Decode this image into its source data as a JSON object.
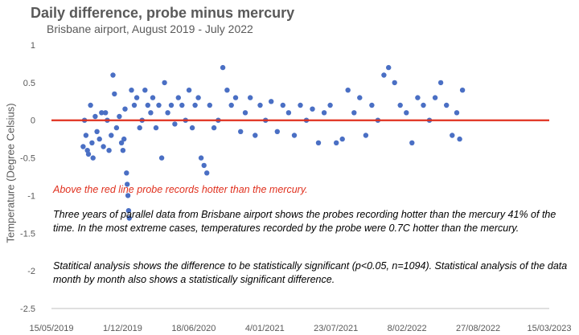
{
  "chart_data": {
    "type": "scatter",
    "title": "Daily difference, probe minus mercury",
    "subtitle": "Brisbane airport, August  2019 - July 2022",
    "xlabel": "",
    "ylabel": "Temperature (Degree Celsius)",
    "xlim": [
      "2019-05-15",
      "2023-03-15"
    ],
    "ylim": [
      -2.5,
      1.0
    ],
    "x_ticks": [
      "15/05/2019",
      "1/12/2019",
      "18/06/2020",
      "4/01/2021",
      "23/07/2021",
      "8/02/2022",
      "27/08/2022",
      "15/03/2023"
    ],
    "y_ticks": [
      "1",
      "0.5",
      "0",
      "-0.5",
      "-1",
      "-1.5",
      "-2",
      "-2.5"
    ],
    "reference_line": {
      "y": 0,
      "color": "#e0301e"
    },
    "marker_color": "#4a6fc4",
    "grid": false,
    "series": [
      {
        "points": [
          [
            "2019-08-12",
            -0.35
          ],
          [
            "2019-08-16",
            0.0
          ],
          [
            "2019-08-20",
            -0.2
          ],
          [
            "2019-08-24",
            -0.4
          ],
          [
            "2019-08-27",
            -0.45
          ],
          [
            "2019-09-02",
            0.2
          ],
          [
            "2019-09-06",
            -0.3
          ],
          [
            "2019-09-09",
            -0.5
          ],
          [
            "2019-09-15",
            0.05
          ],
          [
            "2019-09-20",
            -0.15
          ],
          [
            "2019-09-27",
            -0.25
          ],
          [
            "2019-10-03",
            0.1
          ],
          [
            "2019-10-08",
            -0.35
          ],
          [
            "2019-10-14",
            0.1
          ],
          [
            "2019-10-19",
            0.0
          ],
          [
            "2019-10-24",
            -0.4
          ],
          [
            "2019-10-30",
            -0.2
          ],
          [
            "2019-11-04",
            0.6
          ],
          [
            "2019-11-08",
            0.35
          ],
          [
            "2019-11-14",
            -0.1
          ],
          [
            "2019-11-22",
            0.05
          ],
          [
            "2019-11-28",
            -0.3
          ],
          [
            "2019-12-02",
            -0.4
          ],
          [
            "2019-12-05",
            -0.25
          ],
          [
            "2019-12-08",
            0.15
          ],
          [
            "2019-12-12",
            -0.7
          ],
          [
            "2019-12-14",
            -0.85
          ],
          [
            "2019-12-16",
            -1.0
          ],
          [
            "2019-12-18",
            -1.2
          ],
          [
            "2019-12-20",
            -1.3
          ],
          [
            "2019-12-26",
            0.4
          ],
          [
            "2020-01-03",
            0.2
          ],
          [
            "2020-01-10",
            0.3
          ],
          [
            "2020-01-18",
            -0.1
          ],
          [
            "2020-01-25",
            0.0
          ],
          [
            "2020-02-02",
            0.4
          ],
          [
            "2020-02-10",
            0.2
          ],
          [
            "2020-02-18",
            0.1
          ],
          [
            "2020-02-24",
            0.3
          ],
          [
            "2020-03-04",
            -0.1
          ],
          [
            "2020-03-12",
            0.2
          ],
          [
            "2020-03-20",
            -0.5
          ],
          [
            "2020-03-28",
            0.5
          ],
          [
            "2020-04-06",
            0.1
          ],
          [
            "2020-04-16",
            0.2
          ],
          [
            "2020-04-26",
            -0.05
          ],
          [
            "2020-05-06",
            0.3
          ],
          [
            "2020-05-16",
            0.2
          ],
          [
            "2020-05-26",
            0.0
          ],
          [
            "2020-06-05",
            0.4
          ],
          [
            "2020-06-14",
            -0.1
          ],
          [
            "2020-06-22",
            0.2
          ],
          [
            "2020-07-01",
            0.3
          ],
          [
            "2020-07-09",
            -0.5
          ],
          [
            "2020-07-17",
            -0.6
          ],
          [
            "2020-07-25",
            -0.7
          ],
          [
            "2020-08-02",
            0.2
          ],
          [
            "2020-08-14",
            -0.1
          ],
          [
            "2020-08-26",
            0.0
          ],
          [
            "2020-09-08",
            0.7
          ],
          [
            "2020-09-20",
            0.4
          ],
          [
            "2020-10-02",
            0.2
          ],
          [
            "2020-10-14",
            0.3
          ],
          [
            "2020-10-28",
            -0.15
          ],
          [
            "2020-11-10",
            0.1
          ],
          [
            "2020-11-24",
            0.3
          ],
          [
            "2020-12-08",
            -0.2
          ],
          [
            "2020-12-22",
            0.2
          ],
          [
            "2021-01-06",
            0.0
          ],
          [
            "2021-01-22",
            0.25
          ],
          [
            "2021-02-08",
            -0.15
          ],
          [
            "2021-02-24",
            0.2
          ],
          [
            "2021-03-12",
            0.1
          ],
          [
            "2021-03-28",
            -0.2
          ],
          [
            "2021-04-14",
            0.2
          ],
          [
            "2021-05-01",
            0.0
          ],
          [
            "2021-05-18",
            0.15
          ],
          [
            "2021-06-04",
            -0.3
          ],
          [
            "2021-06-20",
            0.1
          ],
          [
            "2021-07-07",
            0.2
          ],
          [
            "2021-07-24",
            -0.3
          ],
          [
            "2021-08-10",
            -0.25
          ],
          [
            "2021-08-26",
            0.4
          ],
          [
            "2021-09-12",
            0.1
          ],
          [
            "2021-09-28",
            0.3
          ],
          [
            "2021-10-15",
            -0.2
          ],
          [
            "2021-11-01",
            0.2
          ],
          [
            "2021-11-18",
            0.0
          ],
          [
            "2021-12-05",
            0.6
          ],
          [
            "2021-12-18",
            0.7
          ],
          [
            "2022-01-04",
            0.5
          ],
          [
            "2022-01-20",
            0.2
          ],
          [
            "2022-02-06",
            0.1
          ],
          [
            "2022-02-22",
            -0.3
          ],
          [
            "2022-03-10",
            0.3
          ],
          [
            "2022-03-26",
            0.2
          ],
          [
            "2022-04-12",
            0.0
          ],
          [
            "2022-04-28",
            0.3
          ],
          [
            "2022-05-14",
            0.5
          ],
          [
            "2022-05-30",
            0.2
          ],
          [
            "2022-06-15",
            -0.2
          ],
          [
            "2022-06-28",
            0.1
          ],
          [
            "2022-07-06",
            -0.25
          ],
          [
            "2022-07-14",
            0.4
          ]
        ]
      }
    ]
  },
  "notes": {
    "red": "Above the red line probe records hotter than the mercury.",
    "para1": "Three years of parallel data from Brisbane airport shows the probes recording hotter than the mercury 41% of the time.  In the most extreme cases, temperatures recorded by the probe were 0.7C hotter than the mercury.",
    "para2": "Statitical analysis shows the difference to be statistically significant (p<0.05, n=1094). Statistical analysis of the data month by month also shows a statistically significant difference."
  }
}
